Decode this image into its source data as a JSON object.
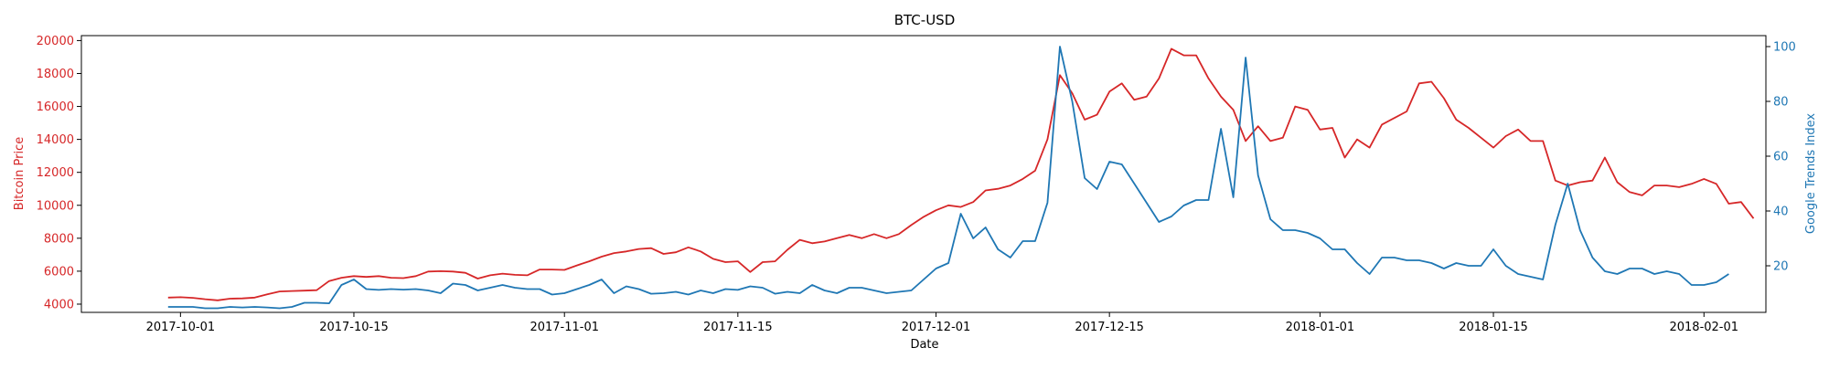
{
  "chart_data": {
    "type": "line",
    "title": "BTC-USD",
    "xlabel": "Date",
    "ylabel_left": "Bitcoin Price",
    "ylabel_right": "Google Trends Index",
    "grid": false,
    "x_range": [
      "2017-09-23",
      "2018-02-06"
    ],
    "ylim_left": [
      3500,
      20300
    ],
    "ylim_right": [
      3,
      104
    ],
    "x_ticks": [
      "2017-10-01",
      "2017-10-15",
      "2017-11-01",
      "2017-11-15",
      "2017-12-01",
      "2017-12-15",
      "2018-01-01",
      "2018-01-15",
      "2018-02-01"
    ],
    "y_ticks_left": [
      4000,
      6000,
      8000,
      10000,
      12000,
      14000,
      16000,
      18000,
      20000
    ],
    "y_ticks_right": [
      20,
      40,
      60,
      80,
      100
    ],
    "colors": {
      "price": "#d62728",
      "trends": "#1f77b4"
    },
    "series": [
      {
        "axis": "left",
        "start_date": "2017-09-30",
        "step_days": 1,
        "values": [
          4400,
          4420,
          4380,
          4300,
          4230,
          4330,
          4350,
          4400,
          4600,
          4770,
          4800,
          4820,
          4850,
          5400,
          5600,
          5700,
          5650,
          5700,
          5600,
          5580,
          5700,
          5980,
          6000,
          5980,
          5900,
          5550,
          5750,
          5850,
          5780,
          5750,
          6100,
          6100,
          6080,
          6350,
          6600,
          6880,
          7100,
          7200,
          7350,
          7400,
          7050,
          7150,
          7450,
          7200,
          6750,
          6550,
          6600,
          5950,
          6550,
          6600,
          7300,
          7900,
          7700,
          7800,
          8000,
          8200,
          8000,
          8250,
          8000,
          8250,
          8800,
          9300,
          9700,
          10000,
          9900,
          10200,
          10900,
          11000,
          11200,
          11600,
          12100,
          14000,
          17900,
          16800,
          15200,
          15500,
          16900,
          17400,
          16400,
          16600,
          17700,
          19500,
          19100,
          19100,
          17700,
          16600,
          15800,
          13900,
          14800,
          13900,
          14100,
          16000,
          15800,
          14600,
          14700,
          12900,
          14000,
          13500,
          14900,
          15300,
          15700,
          17400,
          17500,
          16500,
          15200,
          14700,
          14100,
          13500,
          14200,
          14600,
          13900,
          13900,
          11500,
          11200,
          11400,
          11500,
          12900,
          11400,
          10800,
          10600,
          11200,
          11200,
          11100,
          11300,
          11600,
          11300,
          10100,
          10200,
          9200
        ]
      },
      {
        "axis": "right",
        "start_date": "2017-09-30",
        "step_days": 1,
        "values": [
          5,
          5,
          5,
          4.5,
          4.5,
          5,
          4.8,
          5,
          4.8,
          4.5,
          5,
          6.5,
          6.5,
          6.3,
          13,
          15,
          11.5,
          11.2,
          11.5,
          11.3,
          11.5,
          11,
          10,
          13.5,
          13,
          11,
          12,
          13,
          12,
          11.5,
          11.5,
          9.5,
          10,
          11.5,
          13,
          15,
          10,
          12.5,
          11.5,
          9.8,
          10,
          10.5,
          9.5,
          11,
          10,
          11.5,
          11.2,
          12.5,
          12,
          9.8,
          10.5,
          10,
          13,
          11,
          10,
          12,
          12,
          11,
          10,
          10.5,
          11,
          15,
          19,
          21,
          39,
          30,
          34,
          26,
          23,
          29,
          29,
          43,
          100,
          80,
          52,
          48,
          58,
          57,
          50,
          43,
          36,
          38,
          42,
          44,
          44,
          70,
          45,
          96,
          53,
          37,
          33,
          33,
          32,
          30,
          26,
          26,
          21,
          17,
          23,
          23,
          22,
          22,
          21,
          19,
          21,
          20,
          20,
          26,
          20,
          17,
          16,
          15,
          35,
          50,
          33,
          23,
          18,
          17,
          19,
          19,
          17,
          18,
          17,
          13,
          13,
          14,
          17
        ]
      }
    ]
  }
}
